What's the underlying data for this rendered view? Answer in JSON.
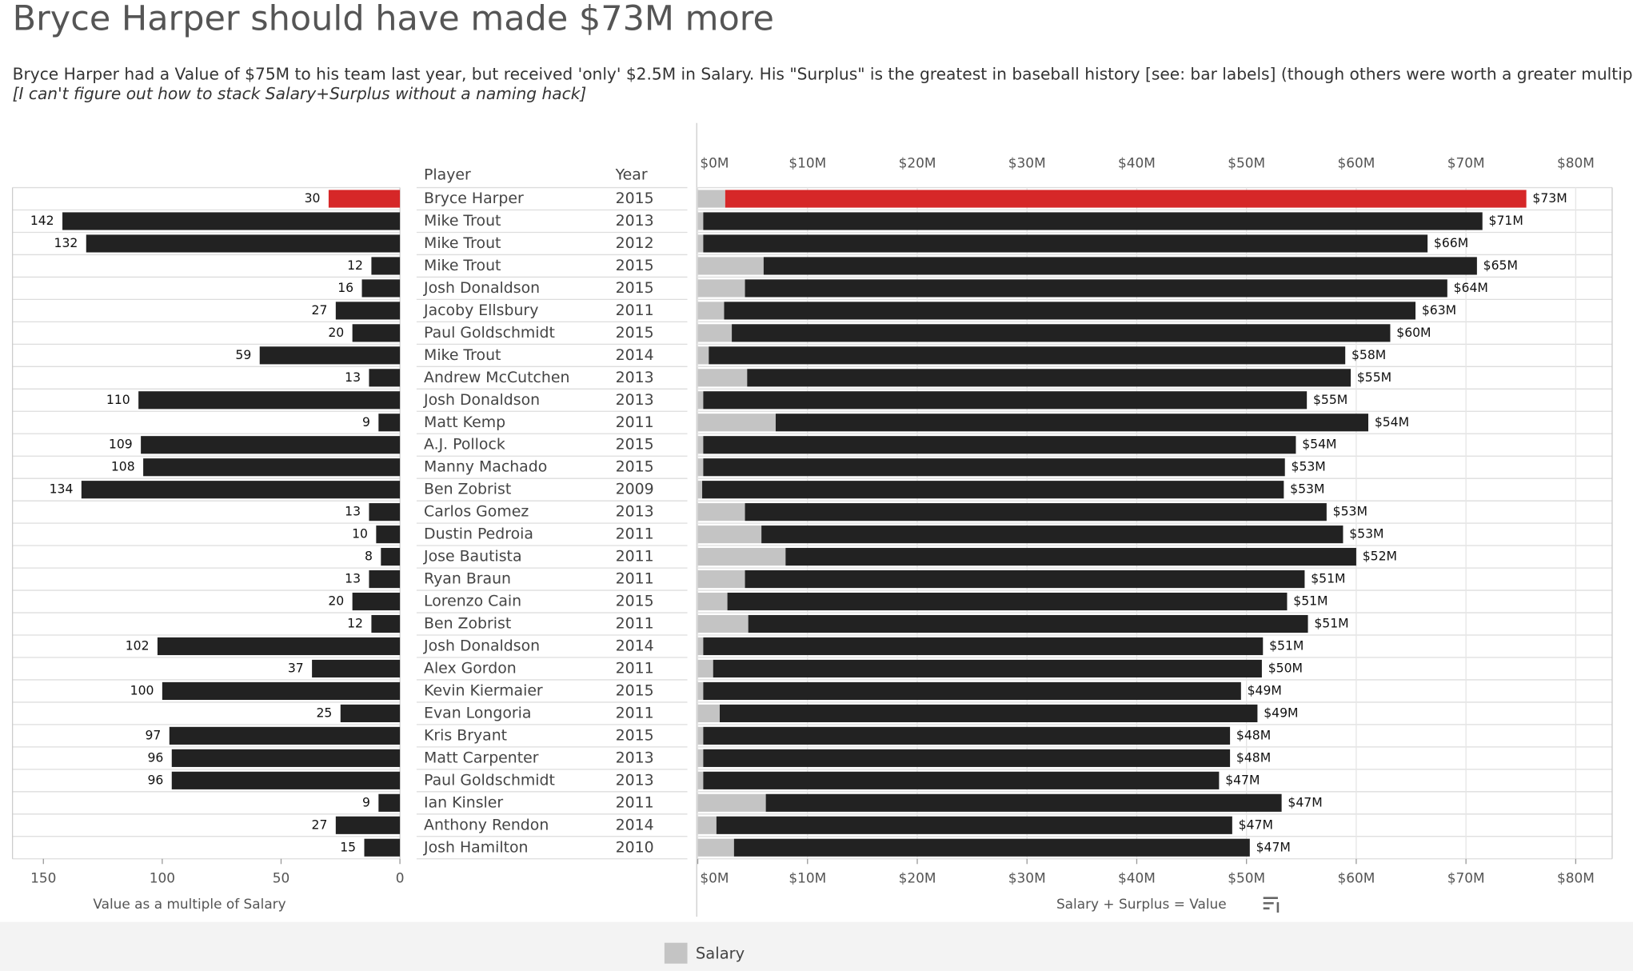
{
  "title": "Bryce Harper should have made $73M more",
  "subtitle": "Bryce Harper had a Value of $75M to his team last year, but received 'only' $2.5M in Salary. His \"Surplus\" is the greatest in baseball history [see: bar labels] (though others were worth a greater multiple)",
  "note": "[I can't figure out how to stack Salary+Surplus without a naming hack]",
  "table": {
    "headers": [
      "Player",
      "Year"
    ],
    "players": [
      "Bryce Harper",
      "Mike Trout",
      "Mike Trout",
      "Mike Trout",
      "Josh Donaldson",
      "Jacoby Ellsbury",
      "Paul Goldschmidt",
      "Mike Trout",
      "Andrew McCutchen",
      "Josh Donaldson",
      "Matt Kemp",
      "A.J. Pollock",
      "Manny Machado",
      "Ben Zobrist",
      "Carlos Gomez",
      "Dustin Pedroia",
      "Jose Bautista",
      "Ryan Braun",
      "Lorenzo Cain",
      "Ben Zobrist",
      "Josh Donaldson",
      "Alex Gordon",
      "Kevin Kiermaier",
      "Evan Longoria",
      "Kris Bryant",
      "Matt Carpenter",
      "Paul Goldschmidt",
      "Ian Kinsler",
      "Anthony Rendon",
      "Josh Hamilton"
    ],
    "years": [
      2015,
      2013,
      2012,
      2015,
      2015,
      2011,
      2015,
      2014,
      2013,
      2013,
      2011,
      2015,
      2015,
      2009,
      2013,
      2011,
      2011,
      2011,
      2015,
      2011,
      2014,
      2011,
      2015,
      2011,
      2015,
      2013,
      2013,
      2011,
      2014,
      2010
    ]
  },
  "chart_data": [
    {
      "type": "bar",
      "orientation": "horizontal",
      "reversed": true,
      "x_label": "Value as a multiple of Salary",
      "values": [
        30,
        142,
        132,
        12,
        16,
        27,
        20,
        59,
        13,
        110,
        9,
        109,
        108,
        134,
        13,
        10,
        8,
        13,
        20,
        12,
        102,
        37,
        100,
        25,
        97,
        96,
        96,
        9,
        27,
        15
      ],
      "colors": [
        "#d62728",
        "#222222",
        "#222222",
        "#222222",
        "#222222",
        "#222222",
        "#222222",
        "#222222",
        "#222222",
        "#222222",
        "#222222",
        "#222222",
        "#222222",
        "#222222",
        "#222222",
        "#222222",
        "#222222",
        "#222222",
        "#222222",
        "#222222",
        "#222222",
        "#222222",
        "#222222",
        "#222222",
        "#222222",
        "#222222",
        "#222222",
        "#222222",
        "#222222",
        "#222222"
      ],
      "xlim": [
        0,
        163
      ],
      "xticks": [
        150,
        100,
        50,
        0
      ]
    },
    {
      "type": "stacked_bar",
      "orientation": "horizontal",
      "x_label": "Salary + Surplus = Value",
      "series": [
        {
          "name": "Salary",
          "color": "#c4c4c4",
          "values": [
            2.5,
            0.5,
            0.5,
            6,
            4.3,
            2.4,
            3.1,
            1,
            4.5,
            0.5,
            7.1,
            0.5,
            0.5,
            0.4,
            4.3,
            5.8,
            8,
            4.3,
            2.7,
            4.6,
            0.5,
            1.4,
            0.5,
            2,
            0.5,
            0.5,
            0.5,
            6.2,
            1.7,
            3.3
          ]
        },
        {
          "colors": [
            "#d62728",
            "#222222",
            "#222222",
            "#222222",
            "#222222",
            "#222222",
            "#222222",
            "#222222",
            "#222222",
            "#222222",
            "#222222",
            "#222222",
            "#222222",
            "#222222",
            "#222222",
            "#222222",
            "#222222",
            "#222222",
            "#222222",
            "#222222",
            "#222222",
            "#222222",
            "#222222",
            "#222222",
            "#222222",
            "#222222",
            "#222222",
            "#222222",
            "#222222",
            "#222222"
          ],
          "values": [
            73,
            71,
            66,
            65,
            64,
            63,
            60,
            58,
            55,
            55,
            54,
            54,
            53,
            53,
            53,
            53,
            52,
            51,
            51,
            51,
            51,
            50,
            49,
            49,
            48,
            48,
            47,
            47,
            47,
            47
          ],
          "value_labels": [
            "$73M",
            "$71M",
            "$66M",
            "$65M",
            "$64M",
            "$63M",
            "$60M",
            "$58M",
            "$55M",
            "$55M",
            "$54M",
            "$54M",
            "$53M",
            "$53M",
            "$53M",
            "$53M",
            "$52M",
            "$51M",
            "$51M",
            "$51M",
            "$51M",
            "$50M",
            "$49M",
            "$49M",
            "$48M",
            "$48M",
            "$47M",
            "$47M",
            "$47M",
            "$47M"
          ]
        }
      ],
      "xlim": [
        0,
        83
      ],
      "xticks": [
        {
          "value": 0,
          "label": "$0M"
        },
        {
          "value": 10,
          "label": "$10M"
        },
        {
          "value": 20,
          "label": "$20M"
        },
        {
          "value": 30,
          "label": "$30M"
        },
        {
          "value": 40,
          "label": "$40M"
        },
        {
          "value": 50,
          "label": "$50M"
        },
        {
          "value": 60,
          "label": "$60M"
        },
        {
          "value": 70,
          "label": "$70M"
        },
        {
          "value": 80,
          "label": "$80M"
        }
      ],
      "grid": true
    }
  ]
}
